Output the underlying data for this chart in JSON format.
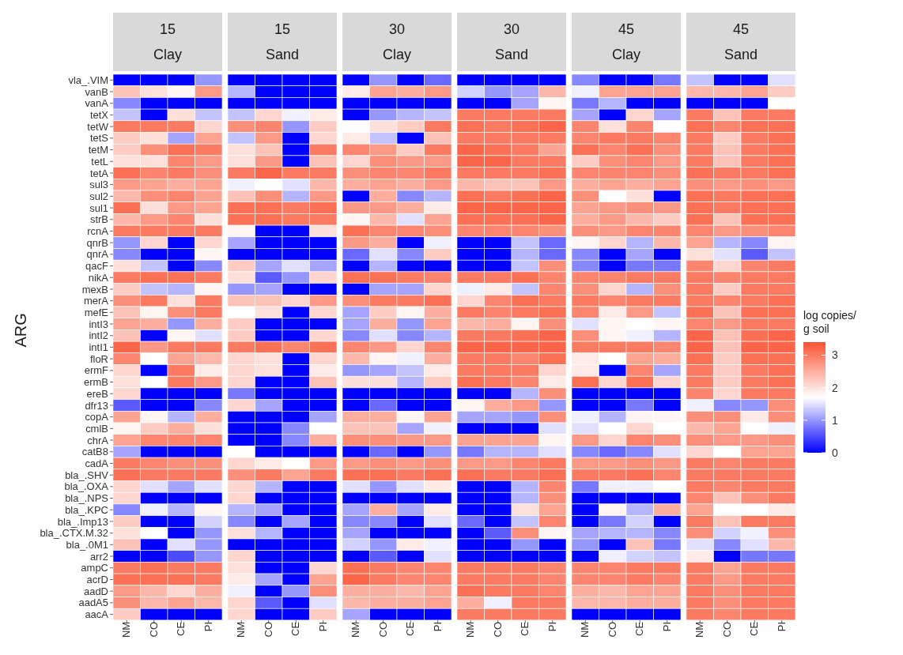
{
  "chart_data": {
    "type": "heatmap",
    "ylabel": "ARG",
    "clabel": "log copies/ g soil",
    "clim": [
      0,
      3.4
    ],
    "cticks": [
      0,
      1,
      2,
      3
    ],
    "annotations": [
      "15\nClay",
      "15\nSand",
      "30\nClay",
      "30\nSand",
      "45\nClay",
      "45\nSand"
    ],
    "categories": [
      "NM",
      "CO",
      "CE",
      "PI",
      "NM",
      "CO",
      "CE",
      "PI",
      "NM",
      "CO",
      "CE",
      "PI",
      "NM",
      "CO",
      "CE",
      "PI",
      "NM",
      "CO",
      "CE",
      "PI",
      "NM",
      "CO",
      "CE",
      "PI"
    ],
    "y_categories": [
      "vla_.VIM",
      "vanB",
      "vanA",
      "tetX",
      "tetW",
      "tetS",
      "tetM",
      "tetL",
      "tetA",
      "sul3",
      "sul2",
      "sul1",
      "strB",
      "rcnA",
      "qnrB",
      "qnrA",
      "qacF",
      "nikA",
      "mexB",
      "merA",
      "mefE",
      "intI3",
      "intI2",
      "intI1",
      "floR",
      "ermF",
      "ermB",
      "ereB",
      "dfr13",
      "copA",
      "cmlB",
      "chrA",
      "catB8",
      "cadA",
      "bla_.SHV",
      "bla_.OXA",
      "bla_.NPS",
      "bla_.KPC",
      "bla_.Imp13",
      "bla_.CTX.M.32",
      "bla_.0M1",
      "arr2",
      "ampC",
      "acrD",
      "aadD",
      "aadA5",
      "aacA"
    ],
    "cells": [
      [
        0,
        0,
        0,
        1.0,
        0,
        0,
        0,
        0,
        0,
        1.0,
        0,
        0.7,
        0,
        0,
        0,
        0,
        0.9,
        0,
        0,
        0.8,
        1.3,
        0,
        0,
        1.5
      ],
      [
        2.3,
        2.0,
        1.8,
        2.7,
        1.2,
        0,
        0,
        0,
        1.9,
        2.6,
        2.5,
        2.7,
        1.4,
        1.0,
        1.1,
        2.4,
        1.6,
        2.6,
        2.6,
        2.6,
        2.4,
        2.4,
        2.6,
        2.2
      ],
      [
        0.9,
        0,
        0,
        0,
        0,
        0,
        0,
        0,
        0,
        0,
        0,
        0,
        0,
        0,
        1.1,
        1.8,
        0.8,
        1.2,
        0,
        0,
        0,
        0,
        0,
        1.7
      ],
      [
        1.3,
        0,
        2.0,
        1.3,
        1.3,
        2.1,
        1.6,
        1.9,
        0,
        1.0,
        1.2,
        1.3,
        3.0,
        3.0,
        3.0,
        3.0,
        1.1,
        0,
        2.1,
        1.1,
        3.0,
        2.3,
        3.0,
        3.0
      ],
      [
        3.0,
        3.0,
        3.0,
        2.1,
        2.8,
        2.9,
        1.0,
        2.2,
        1.7,
        2.0,
        2.2,
        3.0,
        3.1,
        3.0,
        3.1,
        3.2,
        2.9,
        2.0,
        2.9,
        1.7,
        3.1,
        2.9,
        3.1,
        3.1
      ],
      [
        2.2,
        2.0,
        1.1,
        2.6,
        1.3,
        2.7,
        0,
        2.1,
        1.9,
        1.3,
        0,
        2.3,
        3.0,
        3.0,
        3.0,
        3.0,
        2.9,
        3.0,
        3.0,
        2.9,
        3.0,
        2.2,
        3.0,
        3.1
      ],
      [
        2.2,
        2.8,
        3.1,
        3.0,
        2.0,
        2.3,
        0,
        3.0,
        2.9,
        2.7,
        2.2,
        3.0,
        3.2,
        3.1,
        3.0,
        2.6,
        3.1,
        2.9,
        3.1,
        2.8,
        3.0,
        2.3,
        3.0,
        3.1
      ],
      [
        2.0,
        2.0,
        2.9,
        2.7,
        2.0,
        2.7,
        0,
        2.3,
        2.1,
        2.8,
        2.7,
        2.7,
        3.2,
        3.2,
        3.0,
        3.0,
        2.2,
        2.8,
        2.9,
        2.7,
        3.0,
        2.3,
        3.0,
        3.1
      ],
      [
        3.1,
        2.9,
        3.0,
        2.8,
        3.0,
        3.2,
        3.0,
        3.0,
        2.8,
        2.9,
        2.9,
        3.0,
        3.0,
        3.0,
        3.0,
        3.1,
        2.9,
        2.9,
        2.9,
        2.8,
        3.1,
        3.0,
        3.0,
        3.1
      ],
      [
        2.7,
        2.6,
        2.5,
        2.6,
        1.6,
        1.7,
        1.5,
        2.4,
        2.5,
        2.6,
        2.5,
        2.7,
        2.4,
        2.3,
        2.3,
        2.7,
        2.5,
        2.6,
        2.5,
        2.6,
        2.8,
        2.7,
        2.8,
        2.7
      ],
      [
        2.4,
        2.8,
        2.9,
        2.6,
        2.3,
        2.8,
        1.2,
        2.7,
        0,
        2.5,
        0.9,
        1.2,
        3.1,
        3.0,
        3.1,
        3.2,
        2.8,
        1.7,
        2.0,
        0,
        3.1,
        3.0,
        3.1,
        3.1
      ],
      [
        3.1,
        2.0,
        2.7,
        2.6,
        3.1,
        3.1,
        3.0,
        3.1,
        2.7,
        2.7,
        2.5,
        1.9,
        3.2,
        3.2,
        3.2,
        3.2,
        2.6,
        2.7,
        2.8,
        2.7,
        3.1,
        3.0,
        3.1,
        3.1
      ],
      [
        2.4,
        2.7,
        2.9,
        2.0,
        3.1,
        3.1,
        3.0,
        3.0,
        1.8,
        2.4,
        1.5,
        2.6,
        3.1,
        3.1,
        3.1,
        3.2,
        2.5,
        2.7,
        2.4,
        2.2,
        3.1,
        2.3,
        3.1,
        3.1
      ],
      [
        3.0,
        3.0,
        3.0,
        3.0,
        1.8,
        0,
        0,
        2.0,
        3.1,
        2.9,
        2.9,
        2.8,
        2.9,
        2.9,
        2.9,
        2.8,
        2.8,
        2.7,
        2.9,
        2.9,
        2.9,
        2.7,
        2.8,
        2.9
      ],
      [
        1.0,
        2.1,
        0,
        2.1,
        1.1,
        0,
        0,
        0,
        2.7,
        2.5,
        0,
        1.6,
        0,
        0,
        1.3,
        0.7,
        1.8,
        2.1,
        1.2,
        2.4,
        2.6,
        1.2,
        0.9,
        1.8
      ],
      [
        0.9,
        0,
        0,
        1.8,
        0,
        0,
        0,
        0,
        0.7,
        1.5,
        0.9,
        2.2,
        0,
        0,
        1.2,
        0.7,
        0.9,
        0,
        1.1,
        0,
        2.0,
        1.5,
        0.6,
        1.3
      ],
      [
        2.0,
        1.3,
        0,
        0.9,
        2.2,
        1.1,
        1.5,
        1.1,
        0,
        1.2,
        0,
        0,
        0,
        0,
        1.3,
        2.8,
        0.9,
        0,
        0.8,
        0.8,
        2.9,
        2.1,
        2.9,
        3.0
      ],
      [
        3.0,
        3.1,
        3.1,
        3.0,
        2.0,
        0.6,
        1.0,
        2.1,
        3.1,
        3.1,
        3.0,
        2.9,
        3.0,
        3.0,
        3.1,
        2.9,
        2.9,
        2.9,
        3.0,
        3.0,
        3.0,
        2.9,
        3.0,
        3.0
      ],
      [
        2.2,
        1.3,
        1.2,
        1.8,
        1.0,
        1.1,
        0,
        0,
        0,
        1.1,
        1.1,
        2.1,
        1.6,
        1.9,
        1.3,
        2.9,
        2.8,
        2.1,
        1.2,
        2.8,
        3.0,
        2.2,
        3.0,
        3.0
      ],
      [
        2.8,
        3.0,
        2.0,
        3.0,
        2.3,
        2.3,
        2.1,
        2.7,
        2.8,
        3.0,
        3.0,
        3.1,
        2.1,
        2.9,
        3.1,
        3.0,
        3.0,
        2.9,
        3.0,
        3.0,
        3.0,
        2.9,
        3.0,
        3.1
      ],
      [
        2.3,
        1.8,
        2.8,
        3.0,
        1.7,
        2.0,
        0,
        2.1,
        1.1,
        2.2,
        1.8,
        2.5,
        3.0,
        2.9,
        3.0,
        3.1,
        2.9,
        1.9,
        2.7,
        1.3,
        3.1,
        2.3,
        3.1,
        3.1
      ],
      [
        2.6,
        2.5,
        1.0,
        2.5,
        2.2,
        0,
        0,
        0,
        1.1,
        2.5,
        1.0,
        2.6,
        2.4,
        2.5,
        1.8,
        2.8,
        1.5,
        1.8,
        1.7,
        1.8,
        2.9,
        2.7,
        3.0,
        3.0
      ],
      [
        2.3,
        0,
        1.8,
        1.5,
        2.2,
        0,
        0,
        2.1,
        0.9,
        1.5,
        0.9,
        1.2,
        3.0,
        3.0,
        3.1,
        3.2,
        2.8,
        1.8,
        1.6,
        1.2,
        3.2,
        2.3,
        3.1,
        3.2
      ],
      [
        3.2,
        2.7,
        3.0,
        3.0,
        3.0,
        3.1,
        2.9,
        3.1,
        2.9,
        2.7,
        2.1,
        2.9,
        3.2,
        3.2,
        3.2,
        3.2,
        3.0,
        3.0,
        3.0,
        2.9,
        3.2,
        2.3,
        3.2,
        3.2
      ],
      [
        2.9,
        1.7,
        2.6,
        2.4,
        2.1,
        2.0,
        0,
        2.1,
        2.4,
        1.8,
        1.6,
        2.5,
        3.0,
        3.0,
        2.9,
        3.1,
        1.9,
        1.7,
        2.6,
        2.5,
        3.1,
        2.2,
        3.1,
        3.1
      ],
      [
        2.1,
        0,
        3.0,
        1.9,
        2.1,
        2.0,
        0,
        1.9,
        1.0,
        1.1,
        1.3,
        1.9,
        3.0,
        3.0,
        3.0,
        2.1,
        1.9,
        0,
        2.9,
        1.1,
        3.0,
        2.2,
        3.0,
        3.1
      ],
      [
        2.0,
        1.7,
        3.0,
        2.7,
        2.1,
        0,
        0,
        2.3,
        2.0,
        2.0,
        1.2,
        2.2,
        3.1,
        3.0,
        2.9,
        1.9,
        3.1,
        2.1,
        3.1,
        2.1,
        3.0,
        2.2,
        3.0,
        3.1
      ],
      [
        2.1,
        0,
        0,
        0,
        0.8,
        0,
        0,
        0,
        0,
        0,
        0,
        0,
        0,
        0,
        1.2,
        2.8,
        0,
        0,
        0,
        0,
        2.9,
        2.1,
        3.0,
        3.0
      ],
      [
        0.6,
        0,
        0,
        0.9,
        2.1,
        1.1,
        0,
        0,
        0,
        0.7,
        0,
        0,
        1.8,
        2.5,
        2.7,
        1.0,
        0,
        0,
        0.8,
        0,
        1.6,
        0.9,
        1.0,
        2.8
      ],
      [
        2.6,
        1.8,
        1.2,
        2.5,
        0,
        0,
        0,
        1.1,
        2.5,
        2.5,
        1.8,
        2.6,
        1.1,
        1.1,
        1.0,
        2.8,
        1.6,
        1.2,
        1.8,
        1.8,
        2.8,
        2.8,
        1.9,
        2.8
      ],
      [
        1.8,
        2.2,
        2.5,
        2.0,
        0,
        0,
        0.9,
        1.7,
        2.3,
        2.3,
        1.1,
        1.6,
        0,
        0,
        0,
        1.5,
        1.5,
        1.7,
        2.1,
        1.7,
        2.4,
        2.6,
        1.7,
        1.6
      ],
      [
        2.6,
        2.9,
        2.9,
        2.9,
        0,
        0,
        0.9,
        2.5,
        2.8,
        2.8,
        2.7,
        2.7,
        2.6,
        2.6,
        2.6,
        1.8,
        2.7,
        2.1,
        2.9,
        2.8,
        2.8,
        2.7,
        2.7,
        2.8
      ],
      [
        1.1,
        0,
        0,
        0,
        1.7,
        0,
        0,
        0,
        0,
        0.7,
        0,
        1.0,
        0.8,
        1.2,
        1.2,
        1.5,
        0.9,
        0.7,
        0.9,
        1.5,
        2.1,
        1.7,
        2.6,
        2.6
      ],
      [
        3.0,
        2.9,
        2.8,
        2.8,
        2.1,
        1.9,
        1.7,
        2.7,
        2.7,
        2.8,
        2.7,
        2.8,
        2.7,
        2.7,
        2.9,
        3.0,
        2.7,
        2.7,
        2.8,
        2.7,
        3.0,
        2.9,
        3.0,
        3.0
      ],
      [
        3.1,
        3.0,
        3.0,
        3.0,
        2.8,
        3.0,
        2.6,
        3.0,
        3.1,
        3.1,
        3.0,
        3.1,
        3.1,
        3.0,
        3.0,
        3.1,
        3.0,
        3.0,
        3.1,
        2.9,
        3.0,
        3.0,
        3.0,
        3.0
      ],
      [
        2.1,
        1.5,
        1.1,
        1.5,
        2.1,
        1.2,
        0,
        0,
        1.5,
        1.0,
        1.5,
        1.9,
        0,
        0,
        1.2,
        2.9,
        0.8,
        1.6,
        1.6,
        1.7,
        3.0,
        2.9,
        3.0,
        3.0
      ],
      [
        2.1,
        0,
        0,
        0,
        2.1,
        0,
        0,
        0,
        0,
        0,
        0,
        0,
        0,
        0,
        1.2,
        2.8,
        0,
        0,
        0,
        0,
        2.9,
        2.3,
        2.8,
        3.0
      ],
      [
        0.9,
        1.6,
        1.2,
        1.8,
        1.2,
        1.1,
        0,
        0,
        1.1,
        2.5,
        1.1,
        1.9,
        0,
        0,
        2.0,
        2.6,
        0,
        1.8,
        1.2,
        2.5,
        2.6,
        1.7,
        1.7,
        1.9
      ],
      [
        2.2,
        0,
        0,
        1.4,
        0.9,
        0,
        1.1,
        0,
        0.9,
        0.9,
        0,
        1.5,
        0.7,
        0,
        1.3,
        2.9,
        0,
        0.8,
        1.4,
        0,
        3.0,
        2.3,
        3.0,
        3.0
      ],
      [
        2.0,
        1.7,
        0,
        1.0,
        2.0,
        1.2,
        0,
        0,
        1.1,
        0,
        0,
        0,
        0,
        0.6,
        2.8,
        1.8,
        1.1,
        1.2,
        1.2,
        0.9,
        2.8,
        1.4,
        1.6,
        2.8
      ],
      [
        2.3,
        0,
        1.5,
        1.0,
        0,
        0,
        0,
        0,
        1.4,
        1.0,
        1.9,
        1.6,
        0,
        0,
        1.0,
        0,
        1.0,
        0,
        2.3,
        0.8,
        1.5,
        0.9,
        1.5,
        2.4
      ],
      [
        0,
        0,
        0.5,
        1.0,
        2.1,
        0,
        0,
        0,
        0,
        0.6,
        0,
        1.5,
        0,
        0,
        0,
        0,
        0,
        1.6,
        1.4,
        1.3,
        1.9,
        0,
        0.8,
        0.8
      ],
      [
        3.0,
        3.1,
        3.0,
        3.0,
        2.0,
        0,
        0,
        2.1,
        3.1,
        3.0,
        2.9,
        2.9,
        3.0,
        3.0,
        3.0,
        2.9,
        2.9,
        2.9,
        3.0,
        3.0,
        3.0,
        2.6,
        3.0,
        3.0
      ],
      [
        3.1,
        3.1,
        3.1,
        3.0,
        1.9,
        1.1,
        0,
        2.6,
        3.2,
        3.0,
        2.9,
        2.9,
        3.0,
        3.0,
        3.0,
        2.9,
        2.9,
        2.9,
        3.0,
        2.9,
        3.0,
        2.7,
        3.0,
        3.0
      ],
      [
        2.7,
        2.4,
        2.1,
        2.5,
        1.6,
        0,
        1.0,
        2.8,
        2.5,
        2.5,
        2.4,
        2.6,
        3.1,
        3.0,
        3.0,
        2.9,
        2.5,
        2.4,
        2.6,
        2.6,
        3.0,
        2.8,
        3.0,
        3.0
      ],
      [
        2.8,
        2.4,
        2.6,
        2.4,
        2.1,
        0.6,
        0,
        1.5,
        2.4,
        2.5,
        2.5,
        2.6,
        2.5,
        1.6,
        3.0,
        3.0,
        2.4,
        2.4,
        2.5,
        2.5,
        3.0,
        2.8,
        3.0,
        3.0
      ],
      [
        2.2,
        0,
        0,
        0,
        2.1,
        0,
        0,
        2.2,
        1.1,
        0,
        0,
        0,
        3.0,
        3.0,
        3.0,
        3.0,
        0,
        0,
        0,
        0,
        3.0,
        2.9,
        3.0,
        3.0
      ]
    ]
  }
}
